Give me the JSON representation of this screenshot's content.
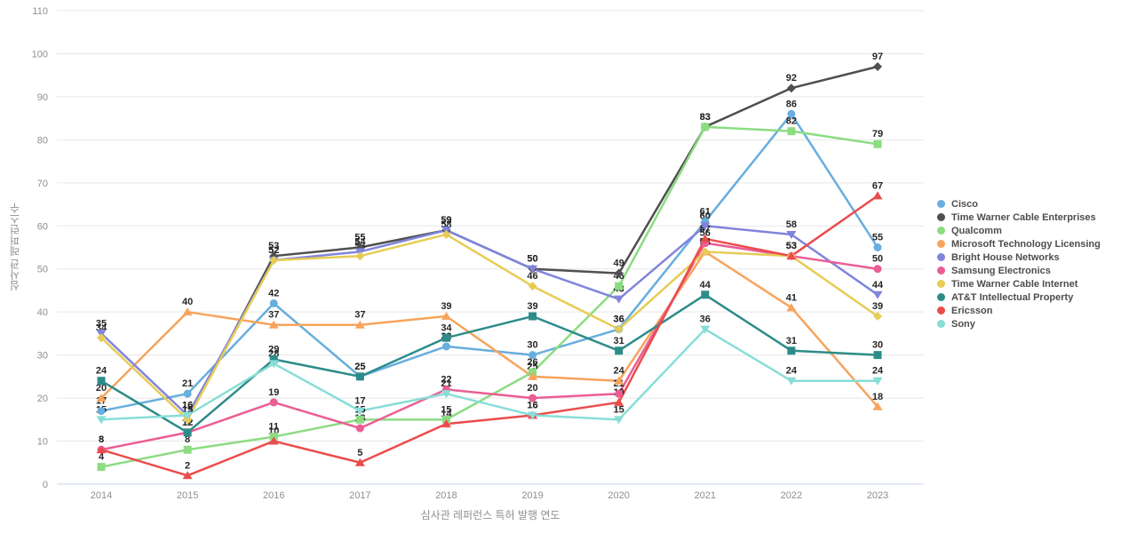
{
  "chart_data": {
    "type": "line",
    "title": "",
    "xlabel": "심사관 레퍼런스 특허 발행 연도",
    "ylabel": "심사관 레퍼런스수",
    "x": [
      2014,
      2015,
      2016,
      2017,
      2018,
      2019,
      2020,
      2021,
      2022,
      2023
    ],
    "ylim": [
      0,
      110
    ],
    "ytick_step": 10,
    "grid": "horizontal",
    "legend_position": "right",
    "point_labels": "shown above every marker",
    "series": [
      {
        "name": "Cisco",
        "color": "#68aede",
        "marker": "circle",
        "values": [
          17,
          21,
          42,
          25,
          32,
          30,
          36,
          61,
          86,
          55
        ]
      },
      {
        "name": "Time Warner Cable Enterprises",
        "color": "#4f4f4f",
        "marker": "diamond",
        "values": [
          null,
          15,
          53,
          55,
          59,
          50,
          49,
          83,
          92,
          97
        ]
      },
      {
        "name": "Qualcomm",
        "color": "#8cdc82",
        "marker": "square",
        "values": [
          4,
          8,
          11,
          15,
          15,
          26,
          46,
          83,
          82,
          79
        ]
      },
      {
        "name": "Microsoft Technology Licensing",
        "color": "#f7a45c",
        "marker": "triangle-up",
        "values": [
          20,
          40,
          37,
          37,
          39,
          25,
          24,
          54,
          41,
          18
        ]
      },
      {
        "name": "Bright House Networks",
        "color": "#8084dc",
        "marker": "triangle-down",
        "values": [
          35,
          16,
          52,
          54,
          59,
          50,
          43,
          60,
          58,
          44
        ]
      },
      {
        "name": "Samsung Electronics",
        "color": "#eb5e95",
        "marker": "circle",
        "values": [
          8,
          12,
          19,
          13,
          22,
          20,
          21,
          56,
          53,
          50
        ]
      },
      {
        "name": "Time Warner Cable Internet",
        "color": "#e6cc55",
        "marker": "diamond",
        "values": [
          34,
          15,
          52,
          53,
          58,
          46,
          36,
          54,
          53,
          39
        ]
      },
      {
        "name": "AT&T Intellectual Property",
        "color": "#2d8c8a",
        "marker": "square",
        "values": [
          24,
          12,
          29,
          25,
          34,
          39,
          31,
          44,
          31,
          30
        ]
      },
      {
        "name": "Ericsson",
        "color": "#eb4c4c",
        "marker": "triangle-up",
        "values": [
          8,
          2,
          10,
          5,
          14,
          16,
          19,
          57,
          53,
          67
        ]
      },
      {
        "name": "Sony",
        "color": "#87ded7",
        "marker": "triangle-down",
        "values": [
          15,
          16,
          28,
          17,
          21,
          16,
          15,
          36,
          24,
          24
        ]
      }
    ],
    "colors": {
      "grid_line": "#e7e7e7",
      "zero_line": "#c9d4ea",
      "tick_label": "#8f8f8f",
      "value_label": "#262626"
    }
  }
}
